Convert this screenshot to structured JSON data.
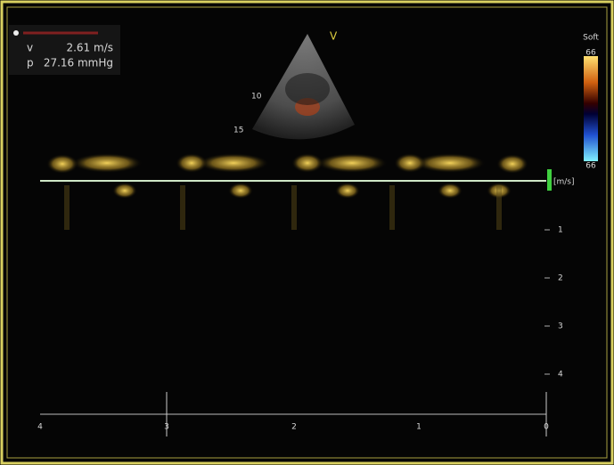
{
  "measurement": {
    "rows": [
      {
        "label": "v",
        "value": "2.61 m/s"
      },
      {
        "label": "p",
        "value": "27.16 mmHg"
      }
    ]
  },
  "sector": {
    "marker": "V",
    "depth_labels": [
      "10",
      "15"
    ]
  },
  "colorbar": {
    "title": "Soft",
    "top": "66",
    "bottom": "66"
  },
  "doppler": {
    "unit": "[m/s]",
    "velocity_labels": [
      "1",
      "2",
      "3",
      "4"
    ],
    "time_labels": [
      "4",
      "3",
      "2",
      "1",
      "0"
    ]
  }
}
